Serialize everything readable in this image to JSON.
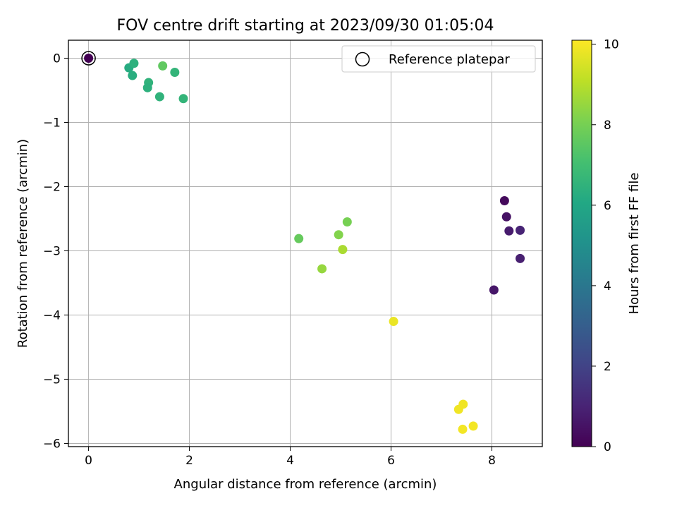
{
  "chart_data": {
    "type": "scatter",
    "title": "FOV centre drift starting at 2023/09/30 01:05:04",
    "xlabel": "Angular distance from reference (arcmin)",
    "ylabel": "Rotation from reference (arcmin)",
    "xlim": [
      -0.4,
      9.0
    ],
    "ylim": [
      -6.05,
      0.28
    ],
    "xticks": [
      0,
      2,
      4,
      6,
      8
    ],
    "yticks": [
      0,
      -1,
      -2,
      -3,
      -4,
      -5,
      -6
    ],
    "tick_labels": {
      "x": [
        "0",
        "2",
        "4",
        "6",
        "8"
      ],
      "y": [
        "0",
        "−1",
        "−2",
        "−3",
        "−4",
        "−5",
        "−6"
      ]
    },
    "grid": true,
    "colormap": "viridis",
    "colorbar": {
      "label": "Hours from first FF file",
      "min": 0,
      "max": 10.1,
      "ticks": [
        0,
        2,
        4,
        6,
        8,
        10
      ],
      "tick_labels": [
        "0",
        "2",
        "4",
        "6",
        "8",
        "10"
      ]
    },
    "legend": {
      "placement": "top-right",
      "entries": [
        {
          "label": "Reference platepar",
          "marker": "open-circle"
        }
      ]
    },
    "reference_point": {
      "x": 0.0,
      "y": 0.0
    },
    "points": [
      {
        "x": 0.0,
        "y": 0.0,
        "hours": 0.0
      },
      {
        "x": 8.25,
        "y": -2.22,
        "hours": 0.25
      },
      {
        "x": 8.29,
        "y": -2.47,
        "hours": 0.5
      },
      {
        "x": 8.34,
        "y": -2.69,
        "hours": 0.75
      },
      {
        "x": 8.56,
        "y": -2.68,
        "hours": 1.0
      },
      {
        "x": 8.56,
        "y": -3.12,
        "hours": 0.9
      },
      {
        "x": 8.04,
        "y": -3.61,
        "hours": 0.6
      },
      {
        "x": 0.8,
        "y": -0.15,
        "hours": 6.2
      },
      {
        "x": 0.9,
        "y": -0.08,
        "hours": 6.4
      },
      {
        "x": 0.87,
        "y": -0.27,
        "hours": 6.3
      },
      {
        "x": 1.19,
        "y": -0.38,
        "hours": 6.5
      },
      {
        "x": 1.17,
        "y": -0.46,
        "hours": 6.4
      },
      {
        "x": 1.41,
        "y": -0.6,
        "hours": 6.5
      },
      {
        "x": 1.71,
        "y": -0.22,
        "hours": 6.6
      },
      {
        "x": 1.88,
        "y": -0.63,
        "hours": 6.6
      },
      {
        "x": 1.47,
        "y": -0.12,
        "hours": 7.6
      },
      {
        "x": 4.17,
        "y": -2.81,
        "hours": 7.7
      },
      {
        "x": 5.13,
        "y": -2.55,
        "hours": 8.0
      },
      {
        "x": 4.96,
        "y": -2.75,
        "hours": 8.2
      },
      {
        "x": 5.04,
        "y": -2.98,
        "hours": 8.8
      },
      {
        "x": 4.63,
        "y": -3.28,
        "hours": 8.5
      },
      {
        "x": 6.05,
        "y": -4.1,
        "hours": 9.8
      },
      {
        "x": 7.34,
        "y": -5.47,
        "hours": 9.9
      },
      {
        "x": 7.43,
        "y": -5.39,
        "hours": 9.9
      },
      {
        "x": 7.42,
        "y": -5.78,
        "hours": 9.95
      },
      {
        "x": 7.63,
        "y": -5.73,
        "hours": 9.95
      }
    ]
  }
}
